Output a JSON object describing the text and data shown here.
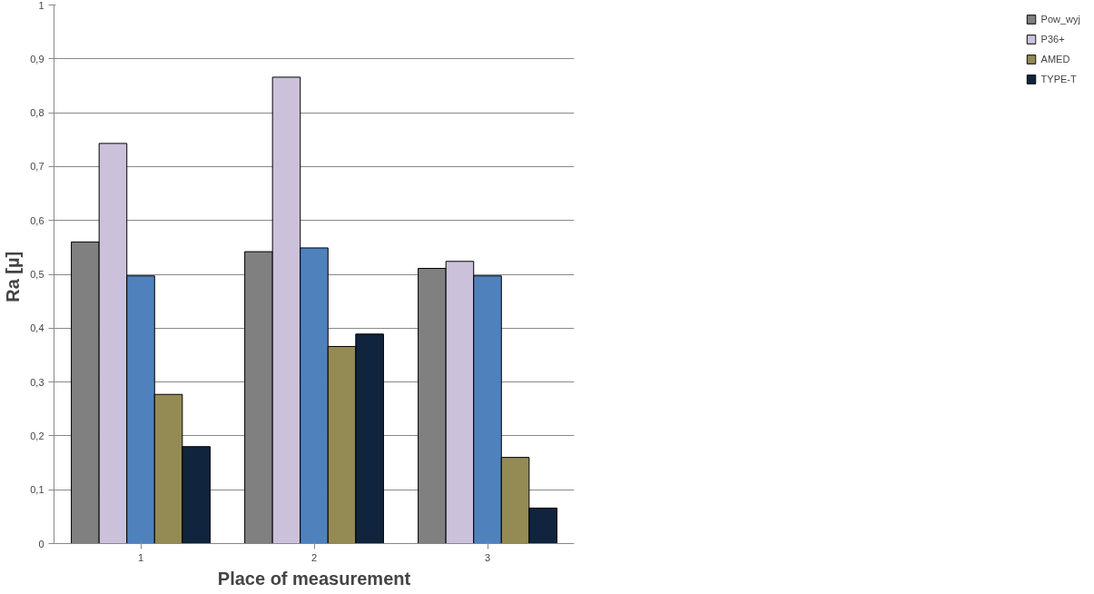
{
  "chart_data": {
    "type": "bar",
    "xlabel": "Place of measurement",
    "ylabel": "Ra  [µ]",
    "categories": [
      "1",
      "2",
      "3"
    ],
    "series": [
      {
        "name": "Pow_wyj",
        "color": "#808080",
        "values": [
          0.56,
          0.542,
          0.511
        ]
      },
      {
        "name": "P36+",
        "color": "#ccc1da",
        "values": [
          0.743,
          0.866,
          0.524
        ]
      },
      {
        "color": "#4f81bd",
        "values": [
          0.497,
          0.549,
          0.497
        ]
      },
      {
        "name": "AMED",
        "color": "#948a54",
        "values": [
          0.277,
          0.366,
          0.16
        ]
      },
      {
        "name": "TYPE-T",
        "color": "#10243e",
        "values": [
          0.18,
          0.389,
          0.066
        ]
      }
    ],
    "ylim": [
      0,
      1
    ],
    "yticks": [
      0,
      {
        "value": 0.1,
        "label": "0,1"
      },
      {
        "value": 0.2,
        "label": "0,2"
      },
      {
        "value": 0.3,
        "label": "0,3"
      },
      {
        "value": 0.4,
        "label": "0,4"
      },
      {
        "value": 0.5,
        "label": "0,5"
      },
      {
        "value": 0.6,
        "label": "0,6"
      },
      {
        "value": 0.7,
        "label": "0,7"
      },
      {
        "value": 0.8,
        "label": "0,8"
      },
      {
        "value": 0.9,
        "label": "0,9"
      },
      1
    ],
    "grid": "y",
    "legend": "right"
  }
}
